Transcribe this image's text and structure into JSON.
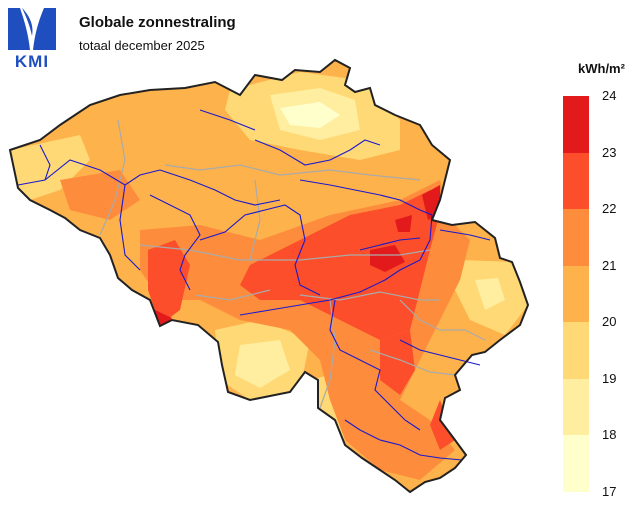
{
  "header": {
    "logo_text": "KMI",
    "title": "Globale zonnestraling",
    "subtitle": "totaal december 2025"
  },
  "legend": {
    "unit": "kWh/m²",
    "ticks": [
      "24",
      "23",
      "22",
      "21",
      "20",
      "19",
      "18",
      "17"
    ],
    "colors": [
      "#e31a1c",
      "#fc4e2a",
      "#fd8d3c",
      "#feb24c",
      "#fed976",
      "#ffeda0",
      "#ffffcc"
    ]
  },
  "map": {
    "border_color": "#222222",
    "river_color": "#1a1acc",
    "province_border_color": "#aaaaaa"
  }
}
